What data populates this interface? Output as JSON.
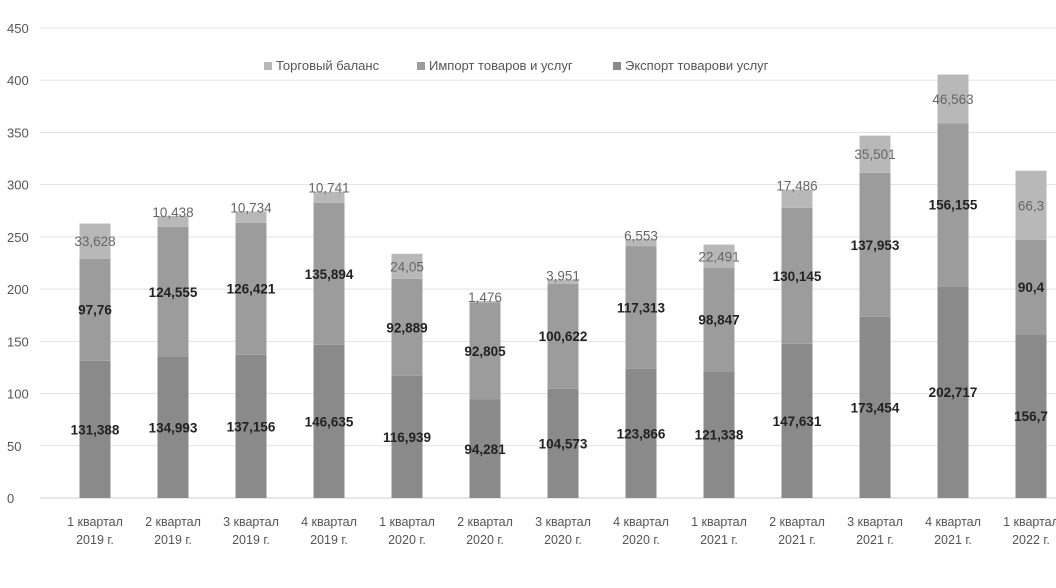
{
  "chart_data": {
    "type": "bar",
    "stacked": true,
    "title": "",
    "xlabel": "",
    "ylabel": "",
    "ylim": [
      0,
      450
    ],
    "y_ticks": [
      0,
      50,
      100,
      150,
      200,
      250,
      300,
      350,
      400,
      450
    ],
    "grid": true,
    "legend_position": "top",
    "categories": [
      [
        "1 квартал",
        "2019 г."
      ],
      [
        "2 квартал",
        "2019 г."
      ],
      [
        "3 квартал",
        "2019 г."
      ],
      [
        "4 квартал",
        "2019 г."
      ],
      [
        "1 квартал",
        "2020 г."
      ],
      [
        "2 квартал",
        "2020 г."
      ],
      [
        "3 квартал",
        "2020 г."
      ],
      [
        "4 квартал",
        "2020 г."
      ],
      [
        "1 квартал",
        "2021 г."
      ],
      [
        "2 квартал",
        "2021 г."
      ],
      [
        "3 квартал",
        "2021 г."
      ],
      [
        "4 квартал",
        "2021 г."
      ],
      [
        "1 квартал",
        "2022 г."
      ]
    ],
    "legend_order": [
      2,
      1,
      0
    ],
    "series": [
      {
        "name": "Экспорт товарови услуг",
        "color": "#8a8a8a",
        "label_style": "dark",
        "values": [
          131.388,
          134.993,
          137.156,
          146.635,
          116.939,
          94.281,
          104.573,
          123.866,
          121.338,
          147.631,
          173.454,
          202.717,
          156.7
        ],
        "labels": [
          "131,388",
          "134,993",
          "137,156",
          "146,635",
          "116,939",
          "94,281",
          "104,573",
          "123,866",
          "121,338",
          "147,631",
          "173,454",
          "202,717",
          "156,7"
        ]
      },
      {
        "name": "Импорт товаров и услуг",
        "color": "#9c9c9c",
        "label_style": "dark",
        "values": [
          97.76,
          124.555,
          126.421,
          135.894,
          92.889,
          92.805,
          100.622,
          117.313,
          98.847,
          130.145,
          137.953,
          156.155,
          90.4
        ],
        "labels": [
          "97,76",
          "124,555",
          "126,421",
          "135,894",
          "92,889",
          "92,805",
          "100,622",
          "117,313",
          "98,847",
          "130,145",
          "137,953",
          "156,155",
          "90,4"
        ]
      },
      {
        "name": "Торговый баланс",
        "color": "#b8b8b8",
        "label_style": "light",
        "values": [
          33.628,
          10.438,
          10.734,
          10.741,
          24.05,
          1.476,
          3.951,
          6.553,
          22.491,
          17.486,
          35.501,
          46.563,
          66.3
        ],
        "labels": [
          "33,628",
          "10,438",
          "10,734",
          "10,741",
          "24,05",
          "1,476",
          "3,951",
          "6,553",
          "22,491",
          "17,486",
          "35,501",
          "46,563",
          "66,3"
        ]
      }
    ]
  }
}
